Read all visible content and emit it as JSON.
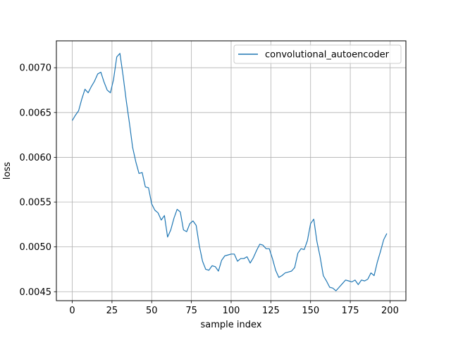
{
  "chart_data": {
    "type": "line",
    "xlabel": "sample index",
    "ylabel": "loss",
    "xlim": [
      -10,
      210
    ],
    "ylim": [
      0.0044,
      0.0073
    ],
    "xticks": [
      0,
      25,
      50,
      75,
      100,
      125,
      150,
      175,
      200
    ],
    "xtick_labels": [
      "0",
      "25",
      "50",
      "75",
      "100",
      "125",
      "150",
      "175",
      "200"
    ],
    "yticks": [
      0.0045,
      0.005,
      0.0055,
      0.006,
      0.0065,
      0.007
    ],
    "ytick_labels": [
      "0.0045",
      "0.0050",
      "0.0055",
      "0.0060",
      "0.0065",
      "0.0070"
    ],
    "grid": true,
    "legend_position": "top-right",
    "colors": {
      "series": "#1f77b4",
      "grid": "#b0b0b0"
    },
    "series": [
      {
        "name": "convolutional_autoencoder",
        "x": [
          0,
          2,
          4,
          6,
          8,
          10,
          12,
          14,
          16,
          18,
          20,
          22,
          24,
          26,
          28,
          30,
          32,
          34,
          36,
          38,
          40,
          42,
          44,
          46,
          48,
          50,
          52,
          54,
          56,
          58,
          60,
          62,
          64,
          66,
          68,
          70,
          72,
          74,
          76,
          78,
          80,
          82,
          84,
          86,
          88,
          90,
          92,
          94,
          96,
          98,
          100,
          102,
          104,
          106,
          108,
          110,
          112,
          114,
          116,
          118,
          120,
          122,
          124,
          126,
          128,
          130,
          132,
          134,
          136,
          138,
          140,
          142,
          144,
          146,
          148,
          150,
          152,
          154,
          156,
          158,
          160,
          162,
          164,
          166,
          168,
          170,
          172,
          174,
          176,
          178,
          180,
          182,
          184,
          186,
          188,
          190,
          192,
          194,
          196,
          198
        ],
        "values": [
          0.00641,
          0.00647,
          0.00652,
          0.00665,
          0.00676,
          0.00672,
          0.00679,
          0.00685,
          0.00693,
          0.00695,
          0.00684,
          0.00675,
          0.00672,
          0.00687,
          0.00712,
          0.00716,
          0.00691,
          0.00663,
          0.00638,
          0.00611,
          0.00595,
          0.00582,
          0.00583,
          0.00567,
          0.00566,
          0.00548,
          0.00541,
          0.00538,
          0.0053,
          0.00535,
          0.00511,
          0.00519,
          0.00532,
          0.00542,
          0.00539,
          0.00519,
          0.00517,
          0.00526,
          0.00529,
          0.00524,
          0.00501,
          0.00484,
          0.00475,
          0.00474,
          0.00479,
          0.00478,
          0.00473,
          0.00485,
          0.0049,
          0.00491,
          0.00492,
          0.00492,
          0.00484,
          0.00487,
          0.00487,
          0.00489,
          0.00482,
          0.00488,
          0.00496,
          0.00503,
          0.00502,
          0.00498,
          0.00498,
          0.00487,
          0.00474,
          0.00466,
          0.00468,
          0.00471,
          0.00472,
          0.00473,
          0.00477,
          0.00493,
          0.00498,
          0.00497,
          0.00507,
          0.00526,
          0.00531,
          0.00506,
          0.00489,
          0.00468,
          0.00462,
          0.00455,
          0.00454,
          0.00451,
          0.00455,
          0.00459,
          0.00463,
          0.00462,
          0.00461,
          0.00463,
          0.00458,
          0.00463,
          0.00462,
          0.00464,
          0.00471,
          0.00468,
          0.00483,
          0.00495,
          0.00508,
          0.00515
        ]
      }
    ]
  }
}
